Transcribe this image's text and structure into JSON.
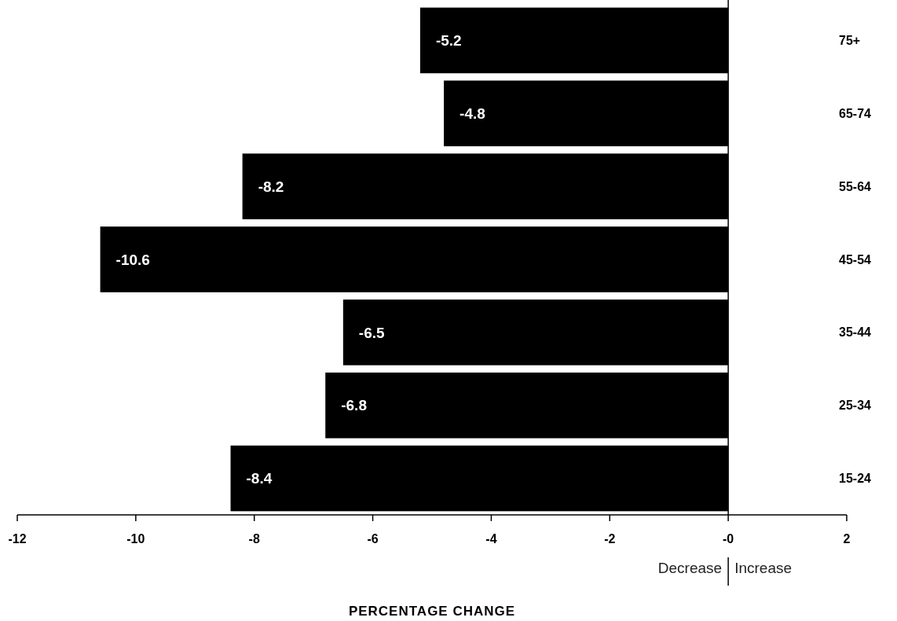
{
  "chart_data": {
    "type": "bar",
    "orientation": "horizontal",
    "xlabel": "PERCENTAGE CHANGE",
    "categories": [
      "75+",
      "65-74",
      "55-64",
      "45-54",
      "35-44",
      "25-34",
      "15-24"
    ],
    "values": [
      -5.2,
      -4.8,
      -8.2,
      -10.6,
      -6.5,
      -6.8,
      -8.4
    ],
    "color": "#000000",
    "xlim": [
      -12,
      2
    ],
    "xticks": [
      -12,
      -10,
      -8,
      -6,
      -4,
      -2,
      {
        "value": 0,
        "label": "-0"
      },
      2
    ],
    "data_labels": true,
    "annotations": [
      "Decrease",
      "Increase"
    ]
  }
}
